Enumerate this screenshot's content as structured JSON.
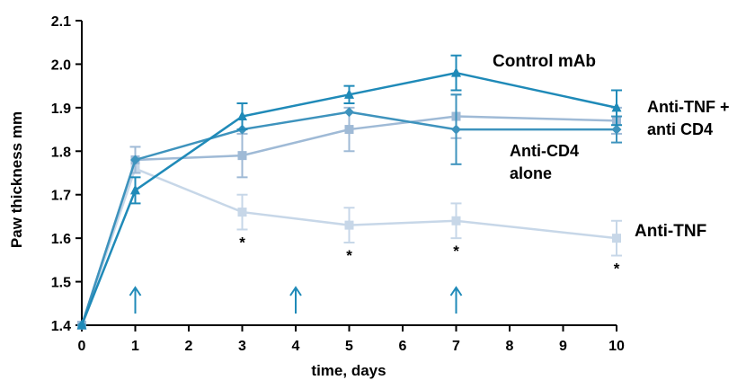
{
  "chart_data": {
    "type": "line",
    "title": "",
    "xlabel": "time, days",
    "ylabel": "Paw thickness mm",
    "x_ticks": [
      "0",
      "1",
      "2",
      "3",
      "4",
      "5",
      "6",
      "7",
      "8",
      "9",
      "10"
    ],
    "y_ticks": [
      "1.4",
      "1.5",
      "1.6",
      "1.7",
      "1.8",
      "1.9",
      "2.0",
      "2.1"
    ],
    "xlim": [
      0,
      10
    ],
    "ylim": [
      1.4,
      2.1
    ],
    "grid": false,
    "dose_arrows_x": [
      1,
      4,
      7
    ],
    "series": [
      {
        "name": "Control mAb",
        "color": "#1f8ab8",
        "marker": "triangle",
        "points": [
          {
            "x": 0,
            "y": 1.4,
            "err": 0.0
          },
          {
            "x": 1,
            "y": 1.71,
            "err": 0.03
          },
          {
            "x": 3,
            "y": 1.88,
            "err": 0.03
          },
          {
            "x": 5,
            "y": 1.93,
            "err": 0.02
          },
          {
            "x": 7,
            "y": 1.98,
            "err": 0.04
          },
          {
            "x": 10,
            "y": 1.9,
            "err": 0.04
          }
        ]
      },
      {
        "name": "Anti-TNF + anti CD4",
        "color": "#3e93bd",
        "marker": "diamond",
        "points": [
          {
            "x": 0,
            "y": 1.4,
            "err": 0.0
          },
          {
            "x": 1,
            "y": 1.78,
            "err": 0.0
          },
          {
            "x": 3,
            "y": 1.85,
            "err": 0.0
          },
          {
            "x": 5,
            "y": 1.89,
            "err": 0.0
          },
          {
            "x": 7,
            "y": 1.85,
            "err": 0.08
          },
          {
            "x": 10,
            "y": 1.85,
            "err": 0.03
          }
        ]
      },
      {
        "name": "Anti-CD4 alone",
        "color": "#9fbad6",
        "marker": "square",
        "points": [
          {
            "x": 0,
            "y": 1.4,
            "err": 0.0
          },
          {
            "x": 1,
            "y": 1.78,
            "err": 0.03
          },
          {
            "x": 3,
            "y": 1.79,
            "err": 0.05
          },
          {
            "x": 5,
            "y": 1.85,
            "err": 0.05
          },
          {
            "x": 7,
            "y": 1.88,
            "err": 0.05
          },
          {
            "x": 10,
            "y": 1.87,
            "err": 0.03
          }
        ]
      },
      {
        "name": "Anti-TNF",
        "color": "#c7d7e8",
        "marker": "square",
        "points": [
          {
            "x": 0,
            "y": 1.4,
            "err": 0.0
          },
          {
            "x": 1,
            "y": 1.76,
            "err": 0.0
          },
          {
            "x": 3,
            "y": 1.66,
            "err": 0.04
          },
          {
            "x": 5,
            "y": 1.63,
            "err": 0.04
          },
          {
            "x": 7,
            "y": 1.64,
            "err": 0.04
          },
          {
            "x": 10,
            "y": 1.6,
            "err": 0.04
          }
        ]
      }
    ],
    "labels": {
      "control": "Control mAb",
      "combo_line1": "Anti-TNF +",
      "combo_line2": "anti CD4",
      "cd4_line1": "Anti-CD4",
      "cd4_line2": "alone",
      "tnf": "Anti-TNF"
    },
    "significance": {
      "symbol": "*",
      "x": [
        3,
        5,
        7,
        10
      ]
    }
  }
}
